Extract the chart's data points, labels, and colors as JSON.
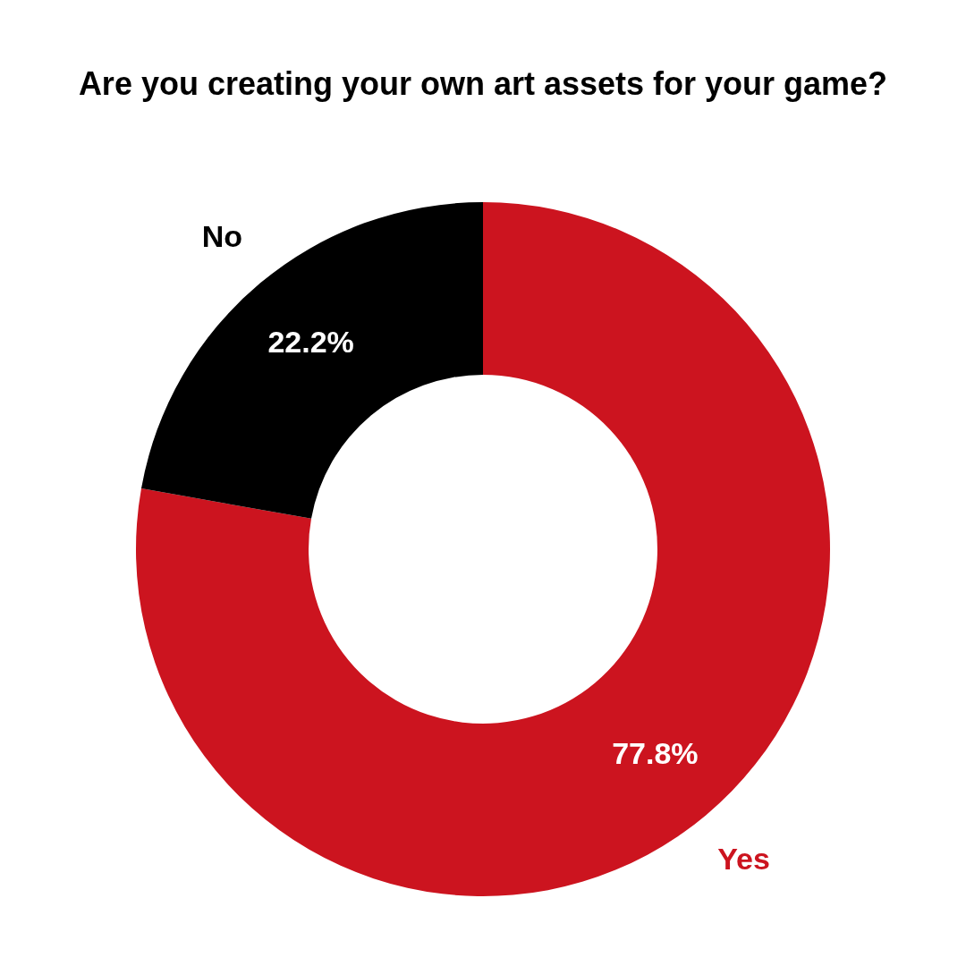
{
  "chart_data": {
    "type": "donut",
    "title": "Are you creating your own art assets for your game?",
    "categories": [
      "Yes",
      "No"
    ],
    "values": [
      77.8,
      22.2
    ],
    "colors": [
      "#cc141f",
      "#000000"
    ],
    "value_labels": [
      "77.8%",
      "22.2%"
    ]
  }
}
